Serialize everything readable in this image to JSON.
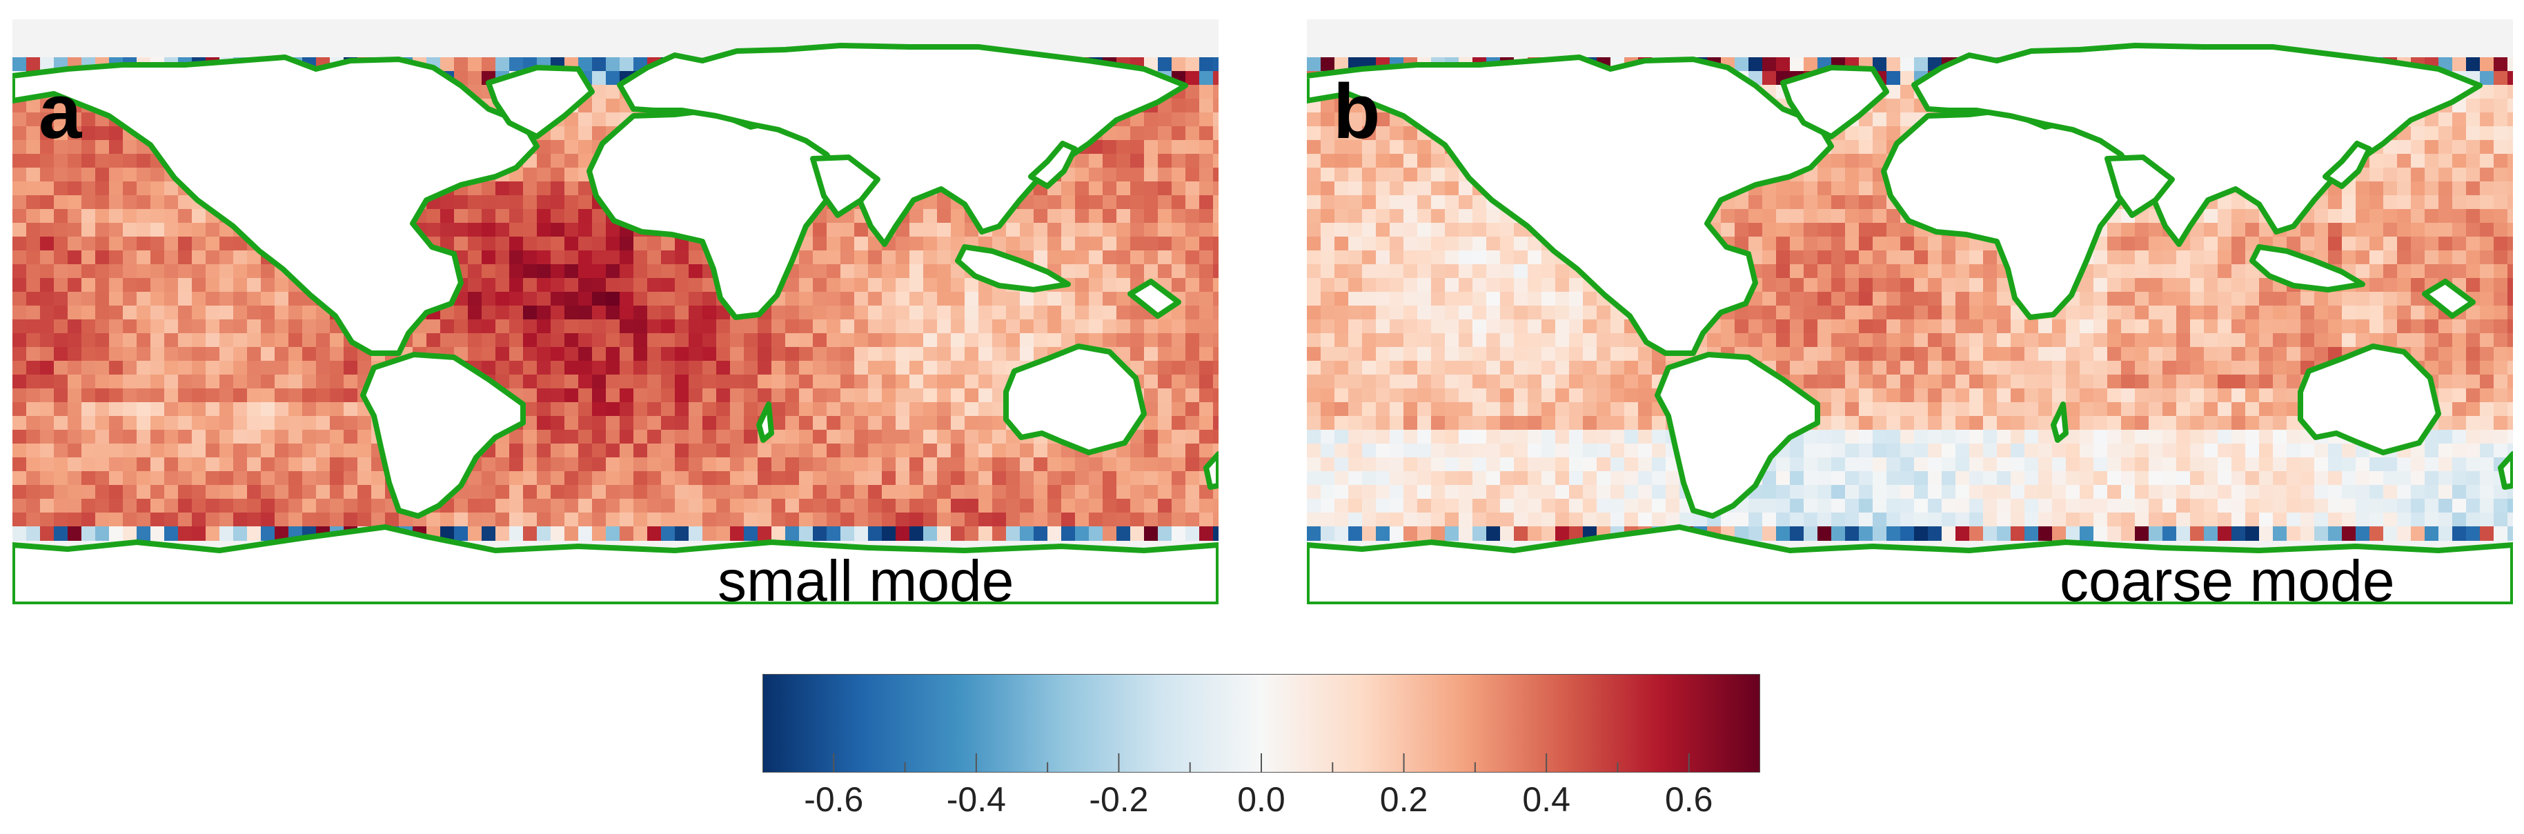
{
  "panels": [
    {
      "letter": "a",
      "label": "small mode"
    },
    {
      "letter": "b",
      "label": "coarse mode"
    }
  ],
  "colorbar": {
    "min": -0.7,
    "max": 0.7,
    "colors": [
      "#08306b",
      "#2166ac",
      "#4393c3",
      "#92c5de",
      "#d1e5f0",
      "#f7f7f7",
      "#fddbc7",
      "#f4a582",
      "#d6604d",
      "#b2182b",
      "#67001f"
    ],
    "tick_labels": [
      "-0.6",
      "-0.4",
      "-0.2",
      "0.0",
      "0.2",
      "0.4",
      "0.6"
    ]
  },
  "colors": {
    "coastline": "#1aa31a",
    "land": "#ffffff",
    "missing": "#f3f3f3"
  }
}
